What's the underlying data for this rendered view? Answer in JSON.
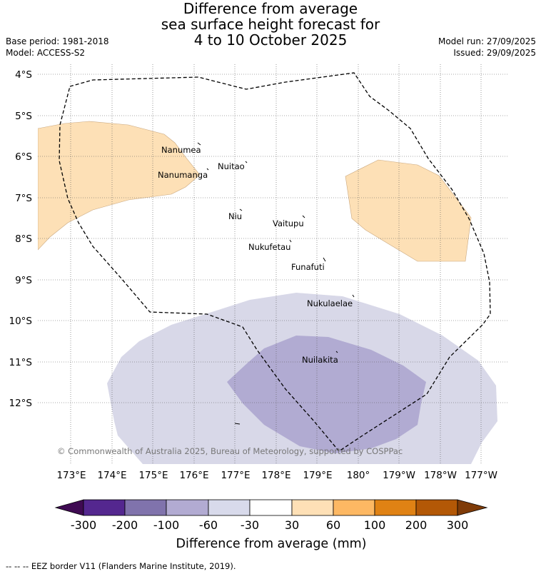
{
  "title": {
    "line1": "Difference from average",
    "line2": "sea surface height forecast for",
    "line3": "4 to 10 October 2025"
  },
  "meta": {
    "base_period": "Base period: 1981-2018",
    "model": "Model: ACCESS-S2",
    "model_run": "Model run: 27/09/2025",
    "issued": "Issued: 29/09/2025"
  },
  "map": {
    "lat_labels": [
      "4°S",
      "5°S",
      "6°S",
      "7°S",
      "8°S",
      "9°S",
      "10°S",
      "11°S",
      "12°S"
    ],
    "lon_labels": [
      "173°E",
      "174°E",
      "175°E",
      "176°E",
      "177°E",
      "178°E",
      "179°E",
      "180°",
      "179°W",
      "178°W",
      "177°W"
    ],
    "places": [
      "Nanumea",
      "Nuitao",
      "Nanumanga",
      "Niu",
      "Vaitupu",
      "Nukufetau",
      "Funafuti",
      "Nukulaelae",
      "Nuilakita"
    ],
    "copyright": "© Commonwealth of Australia 2025, Bureau of Meteorology, supported by COSPPac",
    "colors": {
      "below_30_60": "#d8d8e8",
      "below_60_100": "#b1abd2",
      "above_30_60": "#fde0b6"
    }
  },
  "colorbar": {
    "ticks": [
      "-300",
      "-200",
      "-100",
      "-60",
      "-30",
      "30",
      "60",
      "100",
      "200",
      "300"
    ],
    "colors": [
      "#3f0a52",
      "#54278f",
      "#8073ac",
      "#b2abd2",
      "#d8daeb",
      "#ffffff",
      "#fee0b6",
      "#fdb863",
      "#e08214",
      "#b35806",
      "#7f3b08"
    ],
    "label": "Difference from average (mm)"
  },
  "footnote": "--  --  -- EEZ border V11 (Flanders Marine Institute, 2019)."
}
